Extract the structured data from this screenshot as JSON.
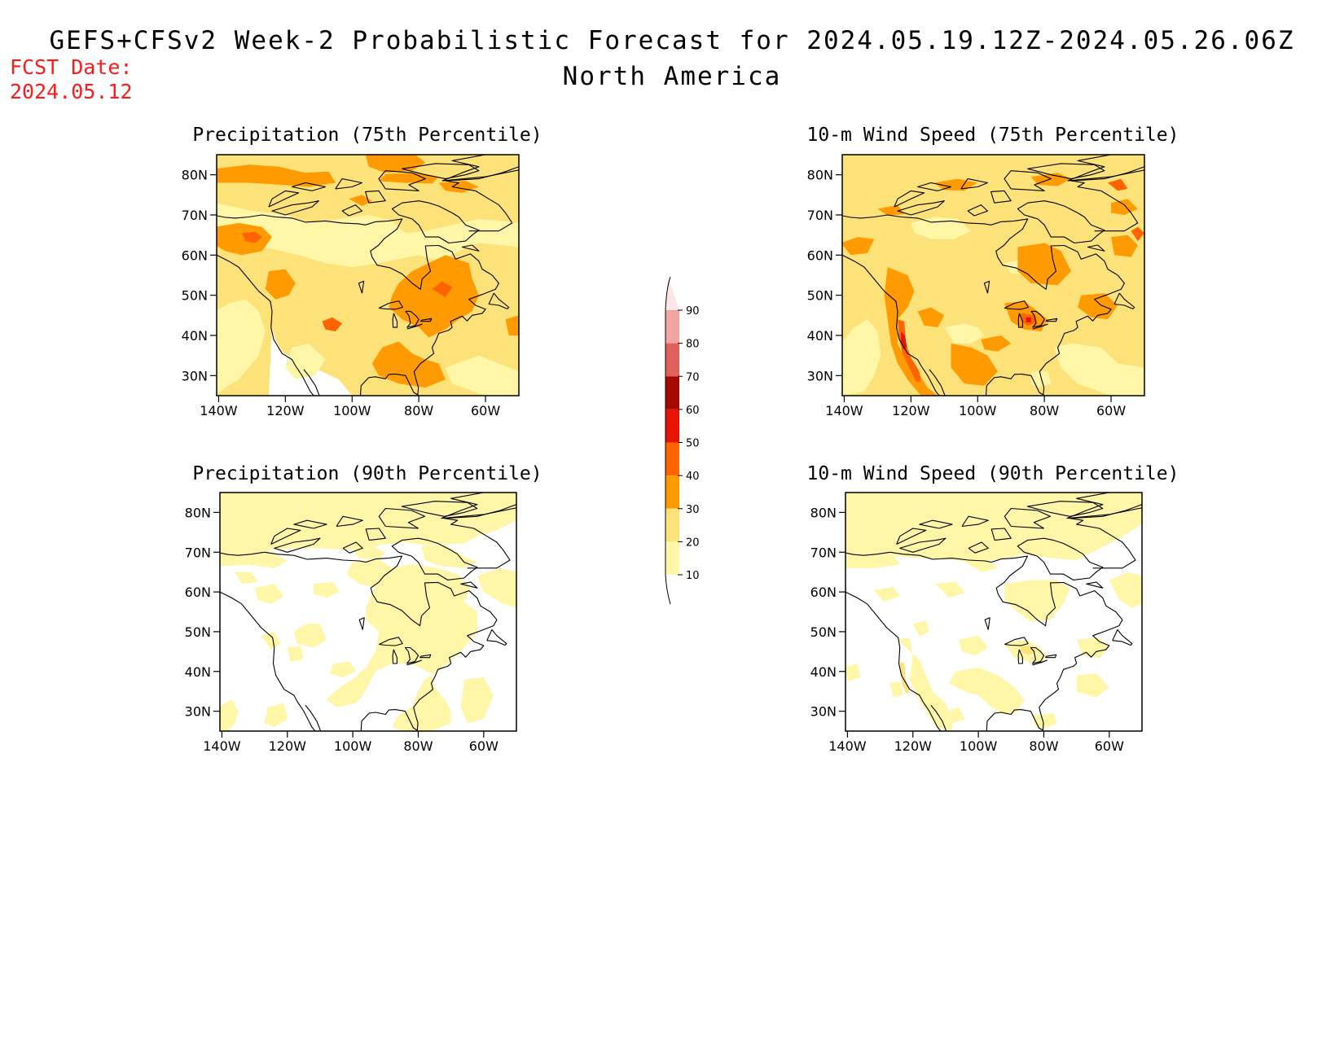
{
  "header": {
    "title": "GEFS+CFSv2 Week-2 Probabilistic Forecast for 2024.05.19.12Z-2024.05.26.06Z",
    "region": "North America",
    "fcst_label": "FCST Date:",
    "fcst_date": "2024.05.12"
  },
  "colors": {
    "fcst_text": "#ff1a1a",
    "levels": [
      "#fff6a8",
      "#fde27a",
      "#ff9a00",
      "#ff6400",
      "#e61400",
      "#a50a00",
      "#e0605c",
      "#f4a3a3",
      "#fde6e6"
    ]
  },
  "colorbar": {
    "labels": [
      "90",
      "80",
      "70",
      "60",
      "50",
      "40",
      "30",
      "20",
      "10"
    ]
  },
  "axes": {
    "lat_labels": [
      "80N",
      "70N",
      "60N",
      "50N",
      "40N",
      "30N"
    ],
    "lon_labels": [
      "140W",
      "120W",
      "100W",
      "80W",
      "60W"
    ]
  },
  "panels": [
    {
      "title": "Precipitation (75th Percentile)",
      "variable": "precipitation",
      "percentile": 75,
      "intensity": "moderate"
    },
    {
      "title": "10-m Wind Speed (75th Percentile)",
      "variable": "wind",
      "percentile": 75,
      "intensity": "high"
    },
    {
      "title": "Precipitation (90th Percentile)",
      "variable": "precipitation",
      "percentile": 90,
      "intensity": "low"
    },
    {
      "title": "10-m Wind Speed (90th Percentile)",
      "variable": "wind",
      "percentile": 90,
      "intensity": "low"
    }
  ]
}
